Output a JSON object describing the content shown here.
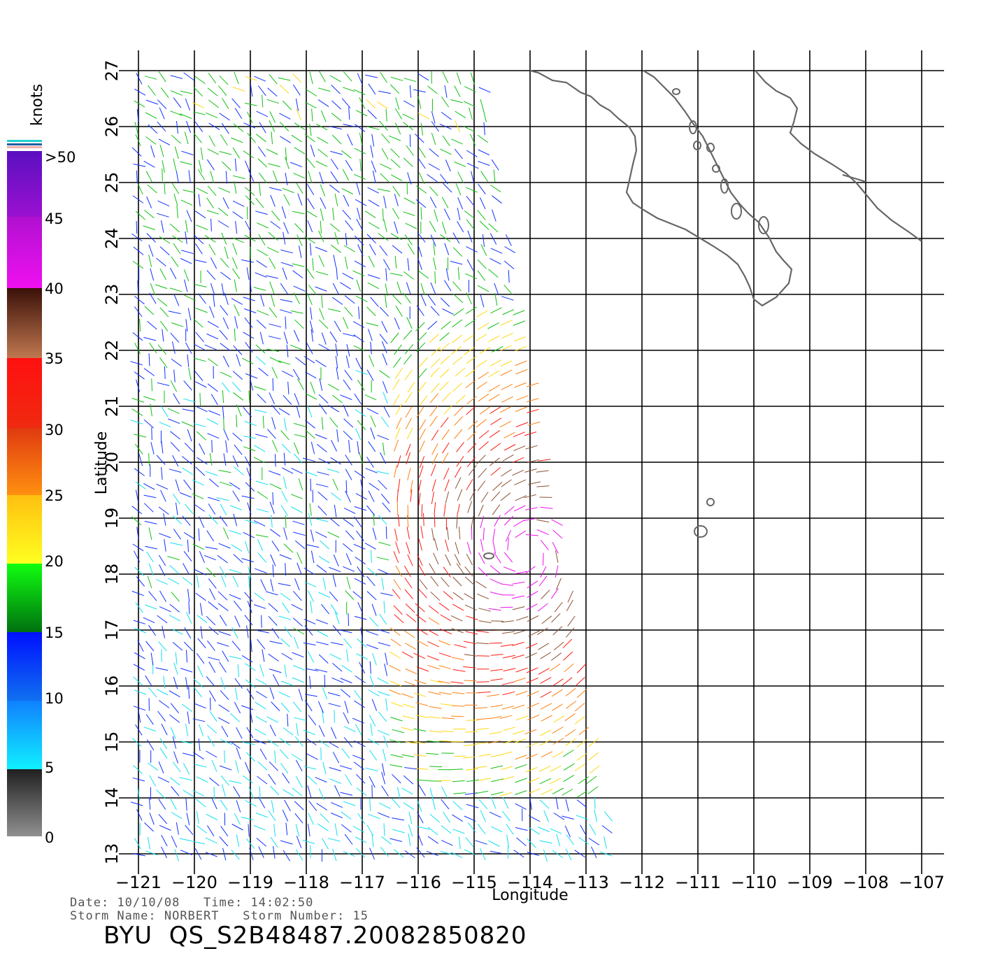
{
  "map": {
    "region": "Eastern Pacific off Baja California",
    "lon_range": [
      -121,
      -107
    ],
    "lat_range": [
      13,
      27
    ],
    "lon_ticks": [
      -121,
      -120,
      -119,
      -118,
      -117,
      -116,
      -115,
      -114,
      -113,
      -112,
      -111,
      -110,
      -109,
      -108,
      -107
    ],
    "lat_ticks": [
      13,
      14,
      15,
      16,
      17,
      18,
      19,
      20,
      21,
      22,
      23,
      24,
      25,
      26,
      27
    ],
    "xlabel": "Longitude",
    "ylabel": "Latitude",
    "coastline_color": "#666666",
    "swath": {
      "description": "QuikSCAT wind vector swath",
      "corners_lonlat": [
        [
          -121.0,
          27.0
        ],
        [
          -114.9,
          27.0
        ],
        [
          -112.5,
          13.0
        ],
        [
          -121.0,
          13.0
        ]
      ],
      "storm_center_lonlat": [
        -114.1,
        18.4
      ]
    }
  },
  "colorbar": {
    "unit_label": "knots",
    "tick_labels": [
      ">50",
      "45",
      "40",
      "35",
      "30",
      "25",
      "20",
      "15",
      "10",
      "5",
      "0"
    ],
    "colors": {
      "purple": "#6a1ad0",
      "magenta": "#ee10ee",
      "brown": "#8a5030",
      "red": "#ff1a10",
      "orange": "#ff8010",
      "yellow": "#ffd810",
      "green": "#10c010",
      "blue": "#1030ff",
      "cyan": "#10e0f0",
      "gray": "#555555"
    }
  },
  "info": {
    "date_label": "Date:",
    "date_value": "10/10/08",
    "time_label": "Time:",
    "time_value": "14:02:50",
    "storm_name_label": "Storm Name:",
    "storm_name": "NORBERT",
    "storm_number_label": "Storm Number:",
    "storm_number": "15",
    "title": "BYU  QS_S2B48487.20082850820"
  }
}
